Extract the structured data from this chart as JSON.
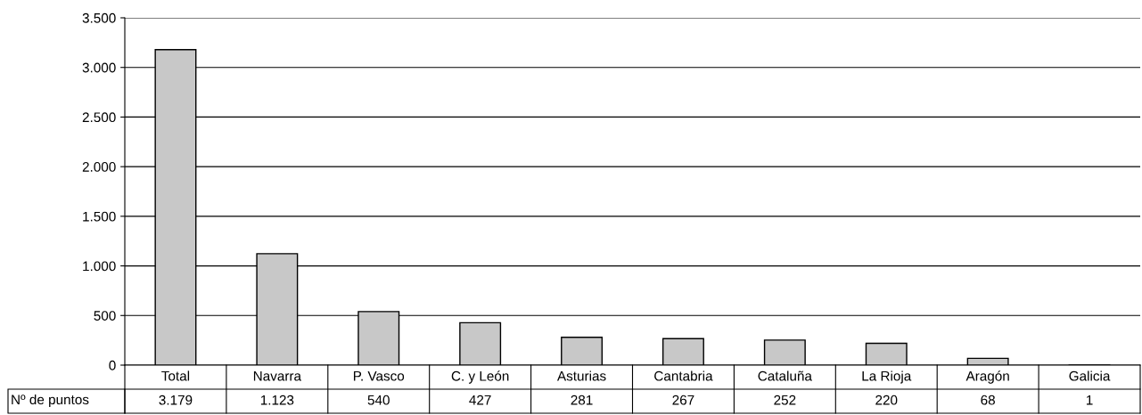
{
  "chart_data": {
    "type": "bar",
    "categories": [
      "Total",
      "Navarra",
      "P. Vasco",
      "C. y León",
      "Asturias",
      "Cantabria",
      "Cataluña",
      "La Rioja",
      "Aragón",
      "Galicia"
    ],
    "series": [
      {
        "name": "Nº de puntos",
        "color": "#c8c8c8",
        "values": [
          3179,
          1123,
          540,
          427,
          281,
          267,
          252,
          220,
          68,
          1
        ],
        "value_labels": [
          "3.179",
          "1.123",
          "540",
          "427",
          "281",
          "267",
          "252",
          "220",
          "68",
          "1"
        ]
      }
    ],
    "ylim": [
      0,
      3500
    ],
    "yticks": [
      0,
      500,
      {
        "value": 1000,
        "label": "1.000"
      },
      {
        "value": 1500,
        "label": "1.500"
      },
      {
        "value": 2000,
        "label": "2.000"
      },
      {
        "value": 2500,
        "label": "2.500"
      },
      {
        "value": 3000,
        "label": "3.000"
      },
      {
        "value": 3500,
        "label": "3.500"
      }
    ],
    "grid": "y"
  }
}
